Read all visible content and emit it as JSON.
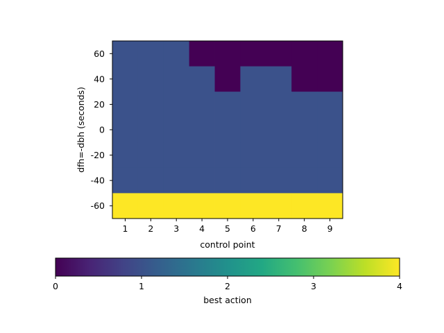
{
  "chart_data": {
    "type": "heatmap",
    "title": "",
    "xlabel": "control point",
    "ylabel": "dfh=-dbh (seconds)",
    "x_categories": [
      "1",
      "2",
      "3",
      "4",
      "5",
      "6",
      "7",
      "8",
      "9"
    ],
    "y_ticks": [
      "60",
      "40",
      "20",
      "0",
      "-20",
      "-40",
      "-60"
    ],
    "y_range": [
      -70,
      70
    ],
    "y_step": 20,
    "rows_top_to_bottom": [
      {
        "y_from": 70,
        "y_to": 50,
        "values": [
          1,
          1,
          1,
          0,
          0,
          0,
          0,
          0,
          0
        ]
      },
      {
        "y_from": 50,
        "y_to": 30,
        "values": [
          1,
          1,
          1,
          1,
          0,
          1,
          1,
          0,
          0
        ]
      },
      {
        "y_from": 30,
        "y_to": 10,
        "values": [
          1,
          1,
          1,
          1,
          1,
          1,
          1,
          1,
          1
        ]
      },
      {
        "y_from": 10,
        "y_to": -10,
        "values": [
          1,
          1,
          1,
          1,
          1,
          1,
          1,
          1,
          1
        ]
      },
      {
        "y_from": -10,
        "y_to": -30,
        "values": [
          1,
          1,
          1,
          1,
          1,
          1,
          1,
          1,
          1
        ]
      },
      {
        "y_from": -30,
        "y_to": -50,
        "values": [
          1,
          1,
          1,
          1,
          1,
          1,
          1,
          1,
          1
        ]
      },
      {
        "y_from": -50,
        "y_to": -70,
        "values": [
          4,
          4,
          4,
          4,
          4,
          4,
          4,
          4,
          4
        ]
      }
    ],
    "colorbar": {
      "label": "best action",
      "range": [
        0,
        4
      ],
      "ticks": [
        "0",
        "1",
        "2",
        "3",
        "4"
      ],
      "colormap": "viridis",
      "orientation": "horizontal"
    },
    "colors": {
      "0": "#440154",
      "1": "#3b528b",
      "2": "#21918c",
      "3": "#5ec962",
      "4": "#fde725"
    }
  }
}
